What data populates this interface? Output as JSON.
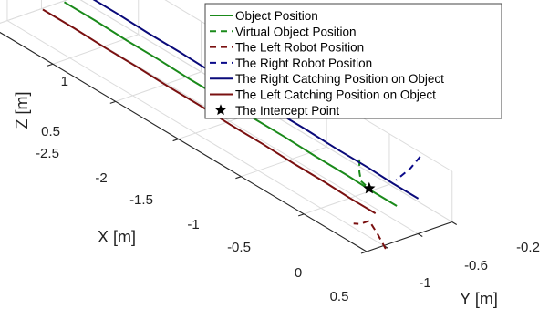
{
  "chart_data": {
    "type": "line",
    "projection": "3d",
    "xlabel": "X [m]",
    "ylabel": "Y [m]",
    "zlabel": "Z [m]",
    "xlim": [
      -2.5,
      0.5
    ],
    "ylim": [
      -1.2,
      -0.2
    ],
    "zlim": [
      0.5,
      1.0
    ],
    "x_ticks": [
      "-2.5",
      "-2",
      "-1.5",
      "-1",
      "-0.5",
      "0",
      "0.5"
    ],
    "y_ticks": [
      "-1",
      "-0.6",
      "-0.2"
    ],
    "z_ticks": [
      "0.5",
      "1"
    ],
    "grid": true,
    "legend_position": "top-right",
    "series": [
      {
        "name": "Object Position",
        "color": "#1a8a1a",
        "style": "solid",
        "points": [
          [
            -2.25,
            -0.7,
            0.78
          ],
          [
            -2.0,
            -0.7,
            0.78
          ],
          [
            -1.75,
            -0.7,
            0.77
          ],
          [
            -1.5,
            -0.7,
            0.77
          ],
          [
            -1.25,
            -0.7,
            0.76
          ],
          [
            -1.0,
            -0.7,
            0.76
          ],
          [
            -0.75,
            -0.7,
            0.75
          ],
          [
            -0.5,
            -0.7,
            0.75
          ],
          [
            -0.25,
            -0.7,
            0.74
          ],
          [
            0.0,
            -0.7,
            0.74
          ],
          [
            0.2,
            -0.7,
            0.73
          ],
          [
            0.4,
            -0.7,
            0.73
          ]
        ]
      },
      {
        "name": "Virtual Object Position",
        "color": "#1a8a1a",
        "style": "dashed",
        "points": [
          [
            0.0,
            -0.55,
            0.85
          ],
          [
            0.02,
            -0.58,
            0.75
          ],
          [
            0.06,
            -0.62,
            0.7
          ],
          [
            0.12,
            -0.66,
            0.72
          ],
          [
            0.16,
            -0.68,
            0.74
          ]
        ]
      },
      {
        "name": "The Left Robot Position",
        "color": "#7a1010",
        "style": "dashed",
        "points": [
          [
            0.55,
            -1.05,
            0.52
          ],
          [
            0.45,
            -1.0,
            0.58
          ],
          [
            0.35,
            -0.95,
            0.62
          ],
          [
            0.3,
            -0.98,
            0.56
          ],
          [
            0.26,
            -1.0,
            0.54
          ]
        ]
      },
      {
        "name": "The Right Robot Position",
        "color": "#0a0a8a",
        "style": "dashed",
        "points": [
          [
            0.3,
            -0.28,
            1.02
          ],
          [
            0.25,
            -0.32,
            0.88
          ],
          [
            0.2,
            -0.35,
            0.78
          ],
          [
            0.19,
            -0.4,
            0.74
          ]
        ]
      },
      {
        "name": "The Right Catching Position on Object",
        "color": "#0a0a7a",
        "style": "solid",
        "points": [
          [
            -2.25,
            -0.45,
            0.78
          ],
          [
            -2.0,
            -0.45,
            0.78
          ],
          [
            -1.75,
            -0.45,
            0.77
          ],
          [
            -1.5,
            -0.45,
            0.77
          ],
          [
            -1.25,
            -0.45,
            0.76
          ],
          [
            -1.0,
            -0.45,
            0.76
          ],
          [
            -0.75,
            -0.45,
            0.75
          ],
          [
            -0.5,
            -0.45,
            0.75
          ],
          [
            -0.25,
            -0.45,
            0.74
          ],
          [
            0.0,
            -0.45,
            0.74
          ],
          [
            0.2,
            -0.45,
            0.73
          ],
          [
            0.4,
            -0.45,
            0.73
          ]
        ]
      },
      {
        "name": "The Left Catching Position on Object",
        "color": "#7a1010",
        "style": "solid",
        "points": [
          [
            -2.25,
            -0.95,
            0.78
          ],
          [
            -2.0,
            -0.95,
            0.78
          ],
          [
            -1.75,
            -0.95,
            0.77
          ],
          [
            -1.5,
            -0.95,
            0.77
          ],
          [
            -1.25,
            -0.95,
            0.76
          ],
          [
            -1.0,
            -0.95,
            0.76
          ],
          [
            -0.75,
            -0.95,
            0.75
          ],
          [
            -0.5,
            -0.95,
            0.75
          ],
          [
            -0.25,
            -0.95,
            0.74
          ],
          [
            0.0,
            -0.95,
            0.74
          ],
          [
            0.2,
            -0.95,
            0.73
          ],
          [
            0.4,
            -0.95,
            0.73
          ]
        ]
      },
      {
        "name": "The Intercept Point",
        "color": "#000000",
        "style": "star",
        "points": [
          [
            0.18,
            -0.7,
            0.74
          ]
        ]
      }
    ]
  }
}
